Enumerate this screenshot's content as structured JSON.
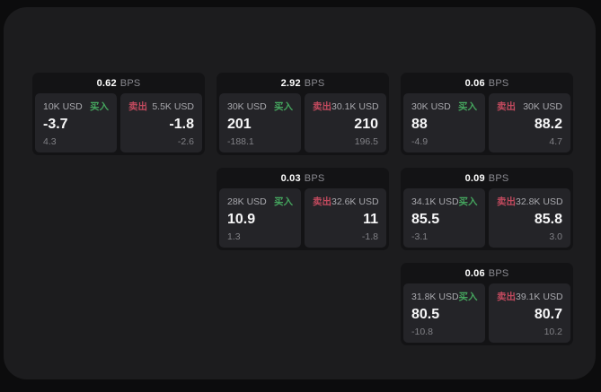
{
  "labels": {
    "bps_unit": "BPS",
    "buy": "买入",
    "sell": "卖出"
  },
  "colors": {
    "buy_green": "#45a55e",
    "sell_red": "#c24a5e",
    "outer_bg": "#0c0c0d",
    "panel_bg": "#1c1c1e",
    "card_bg": "#131315",
    "tile_bg": "#242428"
  },
  "cards": [
    {
      "bps": "0.62",
      "row": 1,
      "col": 1,
      "buy": {
        "notional": "10K USD",
        "price": "-3.7",
        "change": "4.3"
      },
      "sell": {
        "notional": "5.5K USD",
        "price": "-1.8",
        "change": "-2.6"
      }
    },
    {
      "bps": "2.92",
      "row": 1,
      "col": 2,
      "buy": {
        "notional": "30K USD",
        "price": "201",
        "change": "-188.1"
      },
      "sell": {
        "notional": "30.1K USD",
        "price": "210",
        "change": "196.5"
      }
    },
    {
      "bps": "0.06",
      "row": 1,
      "col": 3,
      "buy": {
        "notional": "30K USD",
        "price": "88",
        "change": "-4.9"
      },
      "sell": {
        "notional": "30K USD",
        "price": "88.2",
        "change": "4.7"
      }
    },
    {
      "bps": "0.03",
      "row": 2,
      "col": 2,
      "buy": {
        "notional": "28K USD",
        "price": "10.9",
        "change": "1.3"
      },
      "sell": {
        "notional": "32.6K USD",
        "price": "11",
        "change": "-1.8"
      }
    },
    {
      "bps": "0.09",
      "row": 2,
      "col": 3,
      "buy": {
        "notional": "34.1K USD",
        "price": "85.5",
        "change": "-3.1"
      },
      "sell": {
        "notional": "32.8K USD",
        "price": "85.8",
        "change": "3.0"
      }
    },
    {
      "bps": "0.06",
      "row": 3,
      "col": 3,
      "buy": {
        "notional": "31.8K USD",
        "price": "80.5",
        "change": "-10.8"
      },
      "sell": {
        "notional": "39.1K USD",
        "price": "80.7",
        "change": "10.2"
      }
    }
  ]
}
